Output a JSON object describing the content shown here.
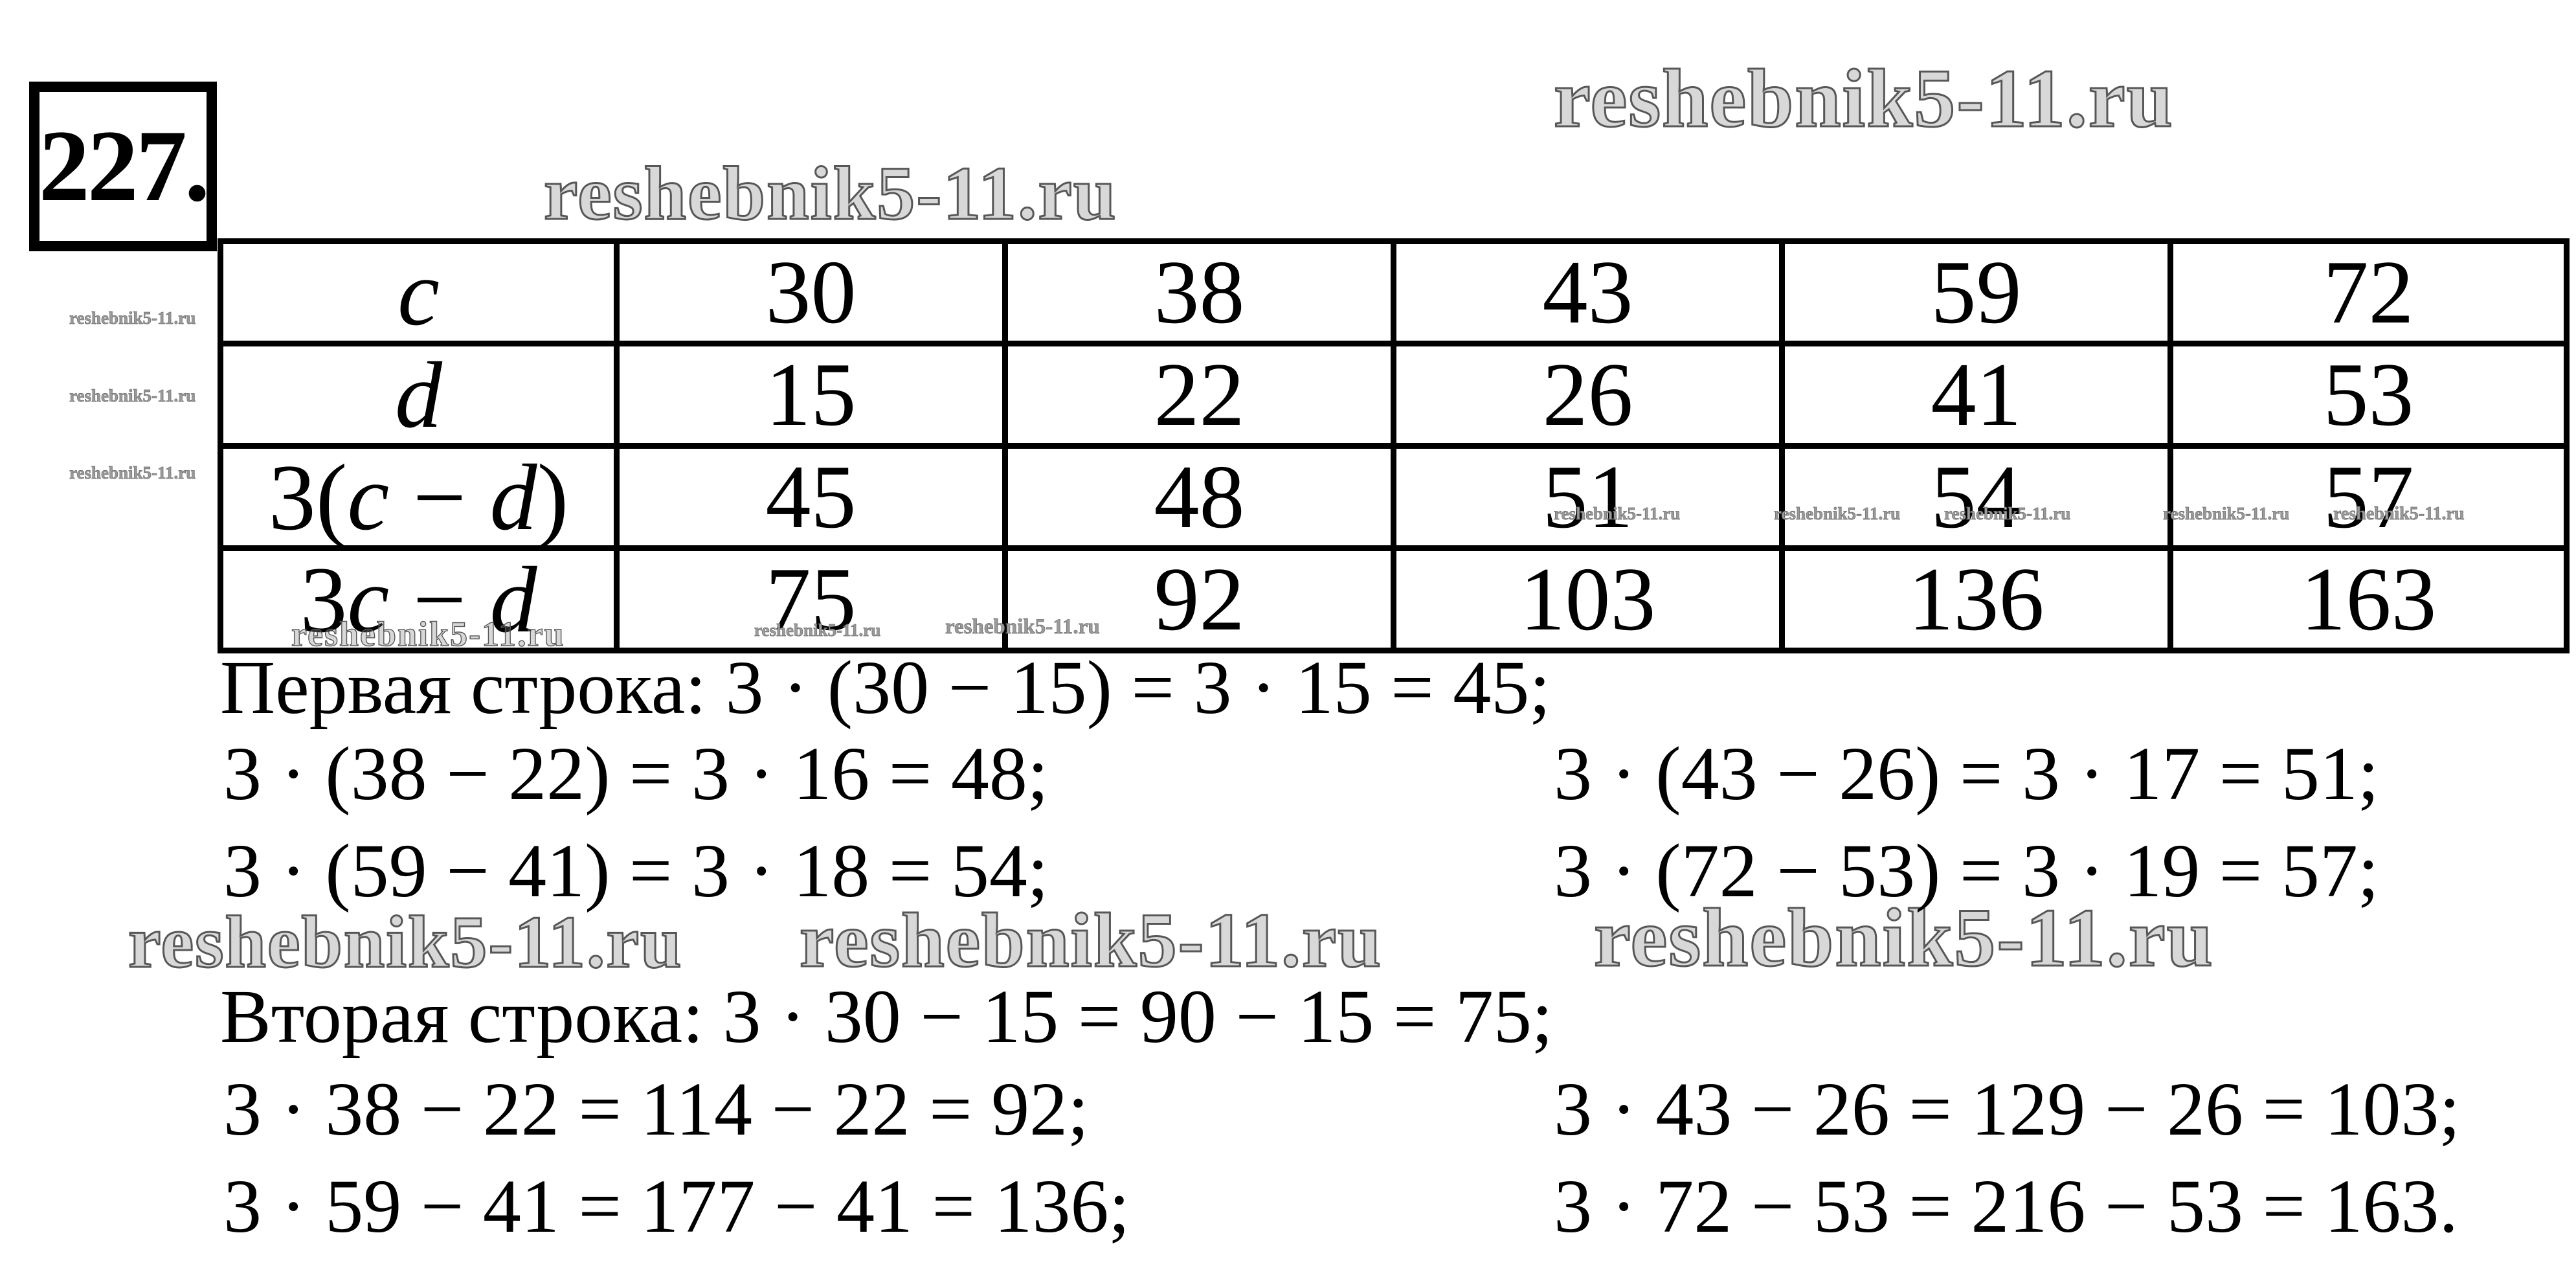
{
  "problem_number": "227.",
  "watermark_text": "reshebnik5-11.ru",
  "table": {
    "rows": [
      {
        "label": "c",
        "values": [
          "30",
          "38",
          "43",
          "59",
          "72"
        ]
      },
      {
        "label": "d",
        "values": [
          "15",
          "22",
          "26",
          "41",
          "53"
        ]
      },
      {
        "label_parts": [
          "3(",
          "c",
          " − ",
          "d",
          ")"
        ],
        "values": [
          "45",
          "48",
          "51",
          "54",
          "57"
        ]
      },
      {
        "label_parts": [
          "3",
          "c",
          " − ",
          "d"
        ],
        "values": [
          "75",
          "92",
          "103",
          "136",
          "163"
        ]
      }
    ]
  },
  "solution": {
    "lines": [
      "Первая строка: 3 · (30 − 15) = 3 · 15 = 45;",
      "3 · (38 − 22) = 3 · 16 = 48;",
      "3 · (43 − 26) = 3 · 17 = 51;",
      "3 · (59 − 41) = 3 · 18 = 54;",
      "3 · (72 − 53) = 3 · 19 = 57;",
      "Вторая строка: 3 · 30 − 15 = 90 − 15 = 75;",
      "3 · 38 − 22 = 114 − 22 = 92;",
      "3 · 43 − 26 = 129 − 26 = 103;",
      "3 · 59 − 41 = 177 − 41 = 136;",
      "3 · 72 − 53 = 216 − 53 = 163."
    ]
  }
}
